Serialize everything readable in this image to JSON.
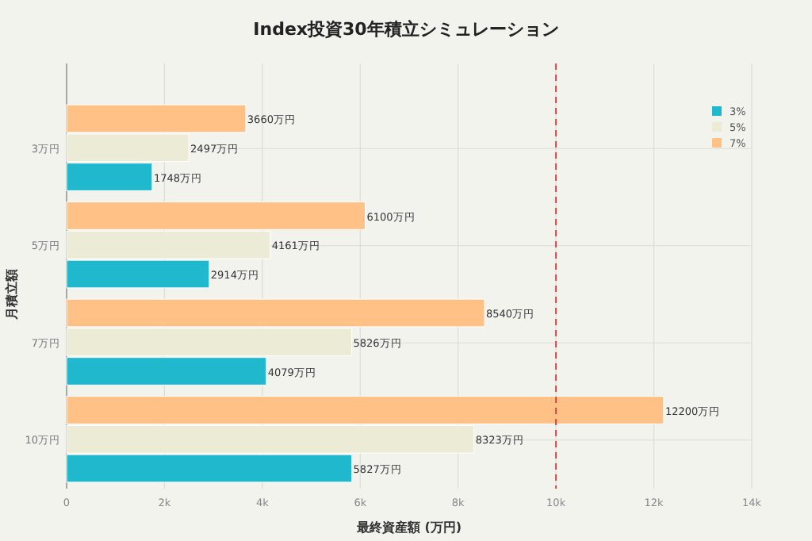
{
  "chart_data": {
    "type": "bar",
    "orientation": "horizontal",
    "title": "Index投資30年積立シミュレーション",
    "xlabel": "最終資産額 (万円)",
    "ylabel": "月積立額",
    "categories": [
      "3万円",
      "5万円",
      "7万円",
      "10万円"
    ],
    "series": [
      {
        "name": "3%",
        "color": "#1fb8cd",
        "values": [
          1748,
          2914,
          4079,
          5827
        ],
        "value_labels": [
          "1748万円",
          "2914万円",
          "4079万円",
          "5827万円"
        ]
      },
      {
        "name": "5%",
        "color": "#ecebd5",
        "values": [
          2497,
          4161,
          5826,
          8323
        ],
        "value_labels": [
          "2497万円",
          "4161万円",
          "5826万円",
          "8323万円"
        ]
      },
      {
        "name": "7%",
        "color": "#ffc185",
        "values": [
          3660,
          6100,
          8540,
          12200
        ],
        "value_labels": [
          "3660万円",
          "6100万円",
          "8540万円",
          "12200万円"
        ]
      }
    ],
    "xlim": [
      0,
      14000
    ],
    "xticks": [
      {
        "value": 0,
        "label": "0"
      },
      {
        "value": 2000,
        "label": "2k"
      },
      {
        "value": 4000,
        "label": "4k"
      },
      {
        "value": 6000,
        "label": "6k"
      },
      {
        "value": 8000,
        "label": "8k"
      },
      {
        "value": 10000,
        "label": "10k"
      },
      {
        "value": 12000,
        "label": "12k"
      },
      {
        "value": 14000,
        "label": "14k"
      }
    ],
    "ref_lines": [
      {
        "axis": "x",
        "value": 10000,
        "color": "#db4545",
        "line_style": "dashed"
      }
    ],
    "grid": true,
    "legend": "top right"
  }
}
